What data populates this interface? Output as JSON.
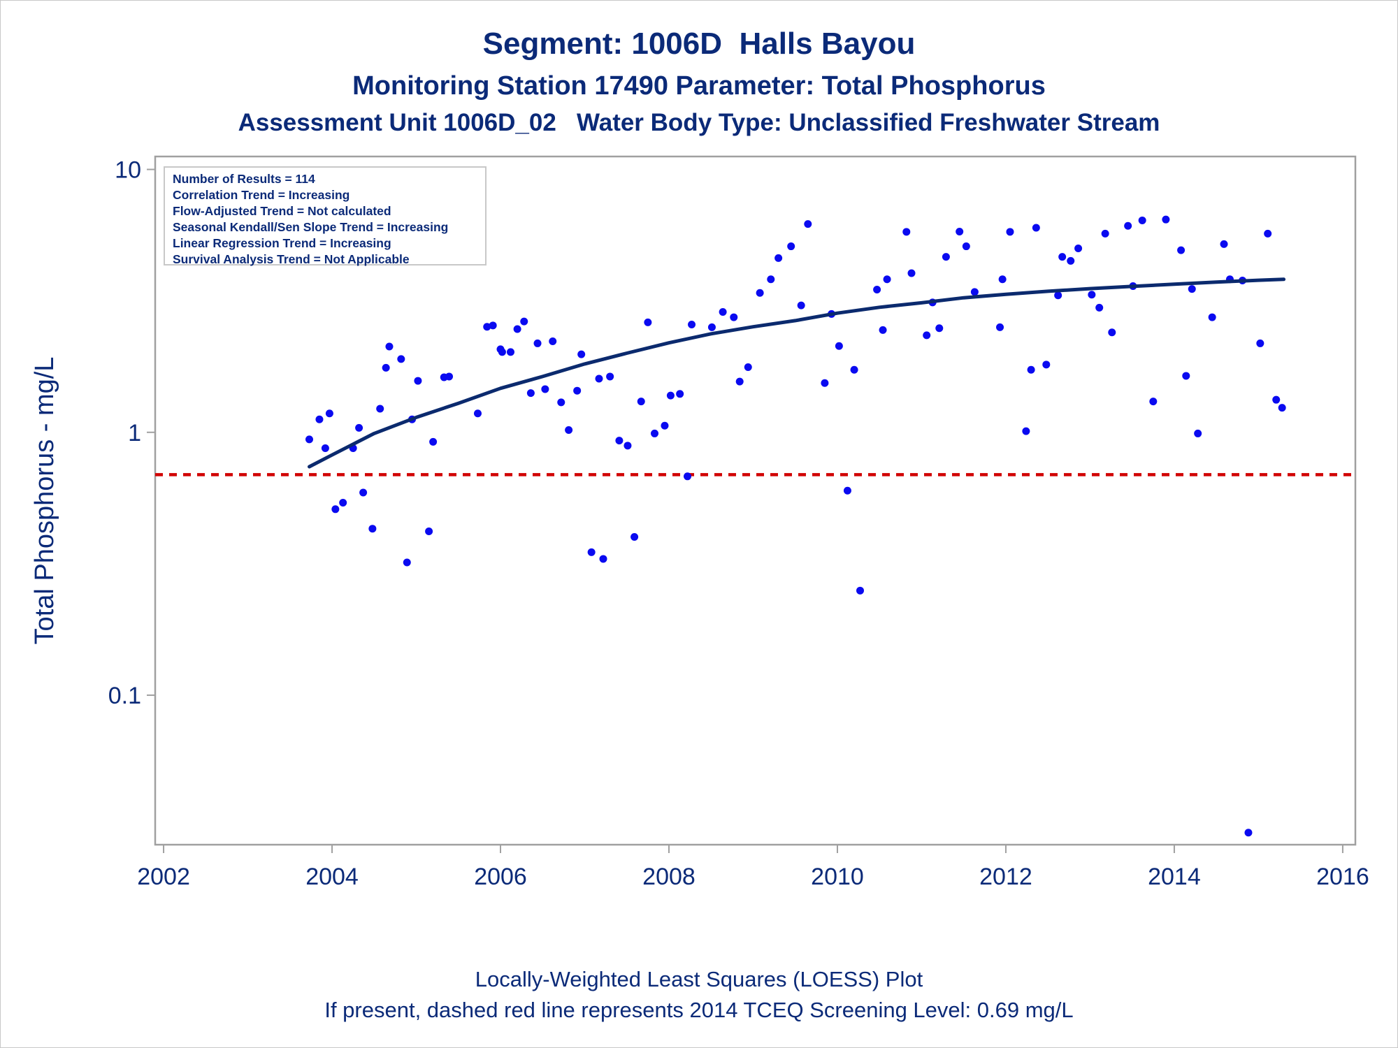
{
  "titles": {
    "line1": "Segment: 1006D  Halls Bayou",
    "line2": "Monitoring Station 17490 Parameter: Total Phosphorus",
    "line3": "Assessment Unit 1006D_02   Water Body Type: Unclassified Freshwater Stream"
  },
  "stats": [
    "Number of Results = 114",
    "Correlation Trend = Increasing",
    "Flow-Adjusted Trend = Not calculated",
    "Seasonal Kendall/Sen Slope Trend = Increasing",
    "Linear Regression Trend = Increasing",
    "Survival Analysis Trend = Not Applicable"
  ],
  "footnotes": {
    "line1": "Locally-Weighted Least Squares (LOESS) Plot",
    "line2": "If present, dashed red line represents 2014 TCEQ Screening Level: 0.69 mg/L"
  },
  "colors": {
    "points": "#0a0af0",
    "loess": "#0b2a6e",
    "screening_line": "#d10000",
    "text": "#0b2a78",
    "frame": "#a0a0a0"
  },
  "chart_data": {
    "type": "scatter",
    "ylabel": "Total Phosphorus - mg/L",
    "xlabel": "",
    "x_ticks": [
      "2002",
      "2004",
      "2006",
      "2008",
      "2010",
      "2012",
      "2014",
      "2016"
    ],
    "y_ticks": [
      "0.1",
      "1",
      "10"
    ],
    "xlim": [
      2001.9,
      2016.15
    ],
    "ylim": [
      0.027,
      11.2
    ],
    "y_scale": "log",
    "grid": false,
    "screening_level": 0.69,
    "points": [
      [
        2003.73,
        0.94
      ],
      [
        2003.85,
        1.12
      ],
      [
        2003.92,
        0.87
      ],
      [
        2003.97,
        1.18
      ],
      [
        2004.04,
        0.51
      ],
      [
        2004.13,
        0.54
      ],
      [
        2004.25,
        0.87
      ],
      [
        2004.32,
        1.04
      ],
      [
        2004.37,
        0.59
      ],
      [
        2004.48,
        0.43
      ],
      [
        2004.57,
        1.23
      ],
      [
        2004.64,
        1.76
      ],
      [
        2004.68,
        2.12
      ],
      [
        2004.82,
        1.9
      ],
      [
        2004.89,
        0.32
      ],
      [
        2004.95,
        1.12
      ],
      [
        2005.02,
        1.57
      ],
      [
        2005.15,
        0.42
      ],
      [
        2005.2,
        0.92
      ],
      [
        2005.33,
        1.62
      ],
      [
        2005.39,
        1.63
      ],
      [
        2005.73,
        1.18
      ],
      [
        2005.84,
        2.52
      ],
      [
        2005.91,
        2.55
      ],
      [
        2006.0,
        2.07
      ],
      [
        2006.02,
        2.02
      ],
      [
        2006.12,
        2.02
      ],
      [
        2006.2,
        2.47
      ],
      [
        2006.28,
        2.64
      ],
      [
        2006.36,
        1.41
      ],
      [
        2006.44,
        2.18
      ],
      [
        2006.53,
        1.46
      ],
      [
        2006.62,
        2.22
      ],
      [
        2006.72,
        1.3
      ],
      [
        2006.81,
        1.02
      ],
      [
        2006.91,
        1.44
      ],
      [
        2006.96,
        1.98
      ],
      [
        2007.08,
        0.35
      ],
      [
        2007.17,
        1.6
      ],
      [
        2007.22,
        0.33
      ],
      [
        2007.3,
        1.63
      ],
      [
        2007.41,
        0.93
      ],
      [
        2007.51,
        0.89
      ],
      [
        2007.59,
        0.4
      ],
      [
        2007.67,
        1.31
      ],
      [
        2007.75,
        2.62
      ],
      [
        2007.83,
        0.99
      ],
      [
        2007.95,
        1.06
      ],
      [
        2008.02,
        1.38
      ],
      [
        2008.13,
        1.4
      ],
      [
        2008.22,
        0.68
      ],
      [
        2008.27,
        2.57
      ],
      [
        2008.51,
        2.51
      ],
      [
        2008.64,
        2.87
      ],
      [
        2008.77,
        2.74
      ],
      [
        2008.84,
        1.56
      ],
      [
        2008.94,
        1.77
      ],
      [
        2009.08,
        3.39
      ],
      [
        2009.21,
        3.82
      ],
      [
        2009.3,
        4.6
      ],
      [
        2009.45,
        5.1
      ],
      [
        2009.57,
        3.04
      ],
      [
        2009.65,
        6.2
      ],
      [
        2009.85,
        1.54
      ],
      [
        2009.93,
        2.82
      ],
      [
        2010.02,
        2.13
      ],
      [
        2010.12,
        0.6
      ],
      [
        2010.2,
        1.73
      ],
      [
        2010.27,
        0.25
      ],
      [
        2010.47,
        3.49
      ],
      [
        2010.54,
        2.45
      ],
      [
        2010.59,
        3.82
      ],
      [
        2010.82,
        5.79
      ],
      [
        2010.88,
        4.03
      ],
      [
        2011.06,
        2.34
      ],
      [
        2011.13,
        3.12
      ],
      [
        2011.21,
        2.49
      ],
      [
        2011.29,
        4.65
      ],
      [
        2011.45,
        5.8
      ],
      [
        2011.53,
        5.1
      ],
      [
        2011.63,
        3.42
      ],
      [
        2011.93,
        2.51
      ],
      [
        2011.96,
        3.82
      ],
      [
        2012.05,
        5.79
      ],
      [
        2012.24,
        1.01
      ],
      [
        2012.3,
        1.73
      ],
      [
        2012.36,
        6.0
      ],
      [
        2012.48,
        1.81
      ],
      [
        2012.62,
        3.32
      ],
      [
        2012.67,
        4.65
      ],
      [
        2012.77,
        4.49
      ],
      [
        2012.86,
        5.01
      ],
      [
        2013.02,
        3.34
      ],
      [
        2013.11,
        2.98
      ],
      [
        2013.18,
        5.7
      ],
      [
        2013.26,
        2.4
      ],
      [
        2013.45,
        6.1
      ],
      [
        2013.51,
        3.6
      ],
      [
        2013.62,
        6.4
      ],
      [
        2013.75,
        1.31
      ],
      [
        2013.9,
        6.45
      ],
      [
        2014.08,
        4.93
      ],
      [
        2014.14,
        1.64
      ],
      [
        2014.21,
        3.51
      ],
      [
        2014.28,
        0.99
      ],
      [
        2014.45,
        2.74
      ],
      [
        2014.59,
        5.2
      ],
      [
        2014.66,
        3.82
      ],
      [
        2014.81,
        3.78
      ],
      [
        2014.88,
        0.03
      ],
      [
        2015.02,
        2.18
      ],
      [
        2015.11,
        5.7
      ],
      [
        2015.21,
        1.33
      ],
      [
        2015.28,
        1.24
      ]
    ],
    "loess": [
      [
        2003.73,
        0.74
      ],
      [
        2004.0,
        0.82
      ],
      [
        2004.5,
        0.99
      ],
      [
        2005.0,
        1.14
      ],
      [
        2005.5,
        1.29
      ],
      [
        2006.0,
        1.47
      ],
      [
        2006.5,
        1.63
      ],
      [
        2007.0,
        1.82
      ],
      [
        2007.5,
        2.0
      ],
      [
        2008.0,
        2.19
      ],
      [
        2008.5,
        2.37
      ],
      [
        2009.0,
        2.52
      ],
      [
        2009.5,
        2.66
      ],
      [
        2010.0,
        2.84
      ],
      [
        2010.5,
        2.99
      ],
      [
        2011.0,
        3.11
      ],
      [
        2011.5,
        3.25
      ],
      [
        2012.0,
        3.35
      ],
      [
        2012.5,
        3.44
      ],
      [
        2013.0,
        3.52
      ],
      [
        2013.5,
        3.59
      ],
      [
        2014.0,
        3.66
      ],
      [
        2014.5,
        3.73
      ],
      [
        2015.0,
        3.79
      ],
      [
        2015.3,
        3.82
      ]
    ]
  }
}
